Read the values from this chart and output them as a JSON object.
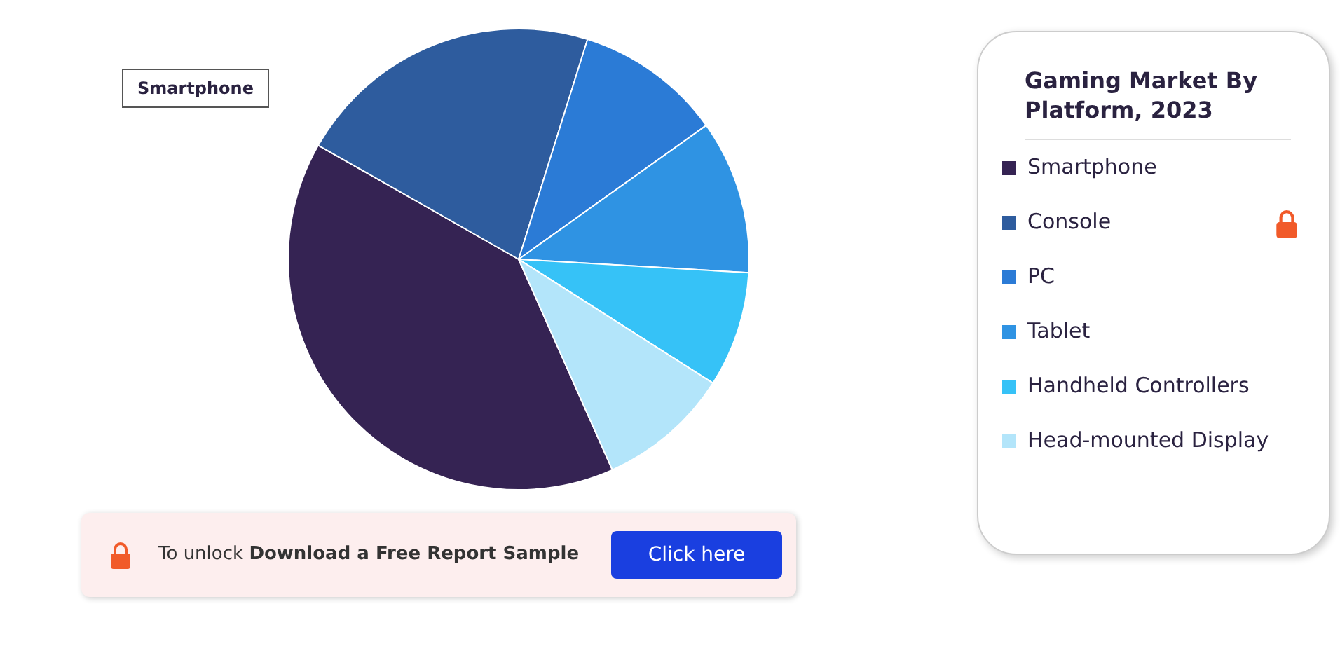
{
  "chart_data": {
    "type": "pie",
    "legend_title": "Gaming Market By Platform, 2023",
    "legend": "right",
    "categories": [
      "Smartphone",
      "Console",
      "PC",
      "Tablet",
      "Handheld Controllers",
      "Head-mounted Display"
    ],
    "values": [
      39.9,
      21.6,
      10.3,
      10.8,
      8.1,
      9.3
    ],
    "colors": [
      "#352353",
      "#2e5c9e",
      "#2b7bd6",
      "#2f93e3",
      "#36c2f7",
      "#b3e5fa"
    ],
    "annotations": [
      "Smartphone",
      "To unlock",
      "Download a Free Report Sample",
      "Click here"
    ]
  }
}
